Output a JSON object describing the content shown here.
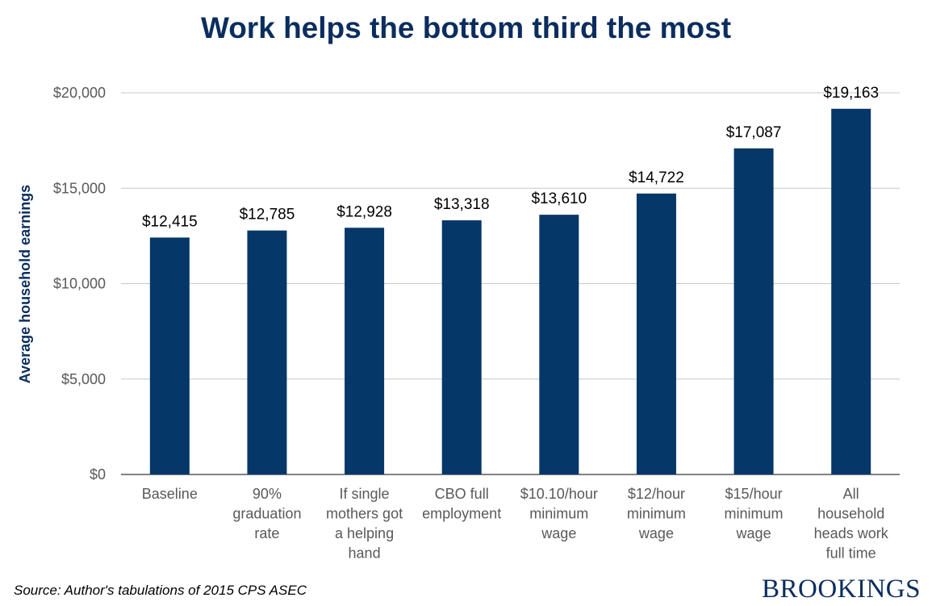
{
  "chart_data": {
    "type": "bar",
    "title": "Work helps the bottom third the most",
    "ylabel": "Average household earnings",
    "xlabel": "",
    "categories": [
      [
        "Baseline"
      ],
      [
        "90%",
        "graduation",
        "rate"
      ],
      [
        "If single",
        "mothers got",
        "a helping",
        "hand"
      ],
      [
        "CBO full",
        "employment"
      ],
      [
        "$10.10/hour",
        "minimum",
        "wage"
      ],
      [
        "$12/hour",
        "minimum",
        "wage"
      ],
      [
        "$15/hour",
        "minimum",
        "wage"
      ],
      [
        "All",
        "household",
        "heads work",
        "full time"
      ]
    ],
    "values": [
      12415,
      12785,
      12928,
      13318,
      13610,
      14722,
      17087,
      19163
    ],
    "value_labels": [
      "$12,415",
      "$12,785",
      "$12,928",
      "$13,318",
      "$13,610",
      "$14,722",
      "$17,087",
      "$19,163"
    ],
    "ylim": [
      0,
      20000
    ],
    "yticks": [
      0,
      5000,
      10000,
      15000,
      20000
    ],
    "ytick_labels": [
      "$0",
      "$5,000",
      "$10,000",
      "$15,000",
      "$20,000"
    ],
    "grid": true,
    "legend": "none",
    "colors": {
      "bar": "#063769",
      "title": "#0b2d5e",
      "ylabel": "#0b2d5e",
      "gridline": "#c8c8c8",
      "axis": "#595959",
      "tick_text": "#595959"
    }
  },
  "footer": {
    "source": "Source: Author's tabulations of 2015 CPS ASEC",
    "brand": "BROOKINGS"
  }
}
